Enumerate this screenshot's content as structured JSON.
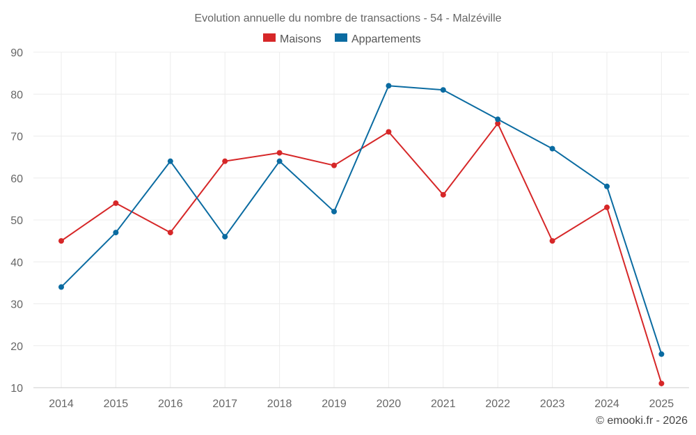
{
  "chart_data": {
    "type": "line",
    "title": "Evolution annuelle du nombre de transactions - 54 - Malzéville",
    "categories": [
      "2014",
      "2015",
      "2016",
      "2017",
      "2018",
      "2019",
      "2020",
      "2021",
      "2022",
      "2023",
      "2024",
      "2025"
    ],
    "series": [
      {
        "name": "Maisons",
        "color": "#d62728",
        "values": [
          45,
          54,
          47,
          64,
          66,
          63,
          71,
          56,
          73,
          45,
          53,
          11
        ]
      },
      {
        "name": "Appartements",
        "color": "#0a6ba1",
        "values": [
          34,
          47,
          64,
          46,
          64,
          52,
          82,
          81,
          74,
          67,
          58,
          18
        ]
      }
    ],
    "ylim": [
      10,
      90
    ],
    "yticks": [
      10,
      20,
      30,
      40,
      50,
      60,
      70,
      80,
      90
    ],
    "grid": true,
    "legend_position": "top-center"
  },
  "credit": "© emooki.fr - 2026"
}
